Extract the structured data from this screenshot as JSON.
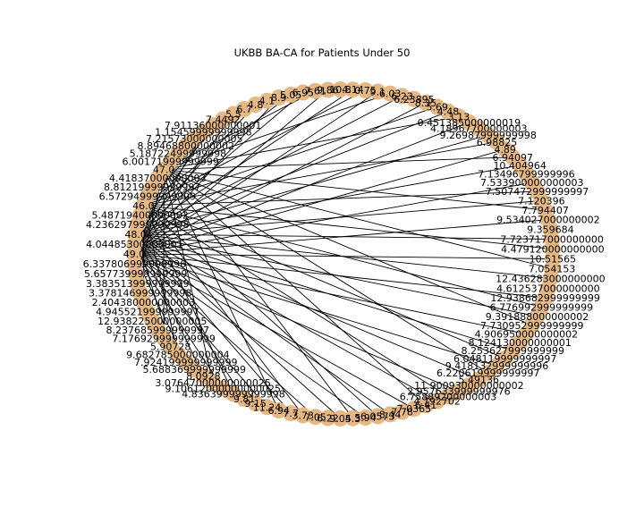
{
  "title": "UKBB BA-CA for Patients Under 50",
  "chart_data": {
    "type": "network",
    "layout": "circular",
    "node_color": "#e6b883",
    "edge_color": "#000000",
    "hubs": [
      "49.0",
      "48.0",
      "47.0",
      "46.0"
    ],
    "nodes": [
      "49.0",
      "4.04485300000001",
      "48.0",
      "4.236297999999998",
      "5.48719400000002",
      "46.0",
      "6.57294999999999",
      "8.81219999999997",
      "4.41837000000003",
      "47.0",
      "6.00171999999999",
      "5.18722499999998",
      "8.89468800000002",
      "7.21573000000005",
      "1.15459999999998",
      "7.91136000000001",
      "7.4492",
      "5.5",
      "6.7",
      "4.8",
      "4.1",
      "8.9",
      "5.05",
      "6.95",
      "7.61",
      "9.86",
      "10.8",
      "4.14",
      "0.75",
      "9.1",
      "6.03",
      "6.23",
      "6.23895",
      "8.35",
      "5.69",
      "4.48",
      "3.13",
      "0.451385000000019",
      "4.18967700000003",
      "9.26987999999998",
      "6.98825",
      "4.89",
      "6.94097",
      "10.404964",
      "7.13496799999996",
      "7.533900000000003",
      "7.507472999999997",
      "7.120396",
      "7.794407",
      "9.534027000000002",
      "9.359684",
      "7.723717000000000",
      "4.479120000000000",
      "10.51565",
      "7.054153",
      "12.436283000000000",
      "4.612537000000000",
      "12.938682999999999",
      "6.776992999999999",
      "9.391888000000002",
      "7.730952999999999",
      "4.906950000000002",
      "8.124130000000001",
      "8.253627999999999",
      "6.048119999999997",
      "9.418132999999996",
      "6.220619999999997",
      "5.49136",
      "11.900930000000002",
      "2.957633999999976",
      "6.75889200000003",
      "4.792702",
      "6.41",
      "7.0365",
      "7.78",
      "8.44",
      "6.0573",
      "5.94",
      "4.3",
      "9.05",
      "6.22",
      "7.05",
      "3.73",
      "7.7",
      "6.94",
      "11.24",
      "9.15",
      "9.81",
      "4.836399999999998",
      "9.10612000000000025",
      "3.07647000000000025",
      "8.0928",
      "5.688369999999999",
      "7.924199999999999",
      "9.682785000000004",
      "5.90728",
      "7.176929999999999",
      "8.237685999999997",
      "12.938225000000005",
      "4.945521999999997",
      "2.404380000000003",
      "3.378146999999998",
      "3.383513999999999",
      "5.657739999999999",
      "6.337806999999996"
    ],
    "edges": [
      [
        "49.0",
        0
      ],
      [
        "49.0",
        3
      ],
      [
        "49.0",
        6
      ],
      [
        "49.0",
        8
      ],
      [
        "49.0",
        11
      ],
      [
        "49.0",
        14
      ],
      [
        "49.0",
        17
      ],
      [
        "49.0",
        21
      ],
      [
        "49.0",
        25
      ],
      [
        "49.0",
        29
      ],
      [
        "49.0",
        33
      ],
      [
        "49.0",
        37
      ],
      [
        "49.0",
        41
      ],
      [
        "49.0",
        45
      ],
      [
        "49.0",
        49
      ],
      [
        "49.0",
        53
      ],
      [
        "49.0",
        57
      ],
      [
        "49.0",
        61
      ],
      [
        "49.0",
        65
      ],
      [
        "49.0",
        69
      ],
      [
        "49.0",
        73
      ],
      [
        "49.0",
        77
      ],
      [
        "49.0",
        81
      ],
      [
        "49.0",
        85
      ],
      [
        "49.0",
        89
      ],
      [
        "49.0",
        93
      ],
      [
        "49.0",
        97
      ],
      [
        "49.0",
        101
      ],
      [
        "48.0",
        1
      ],
      [
        "48.0",
        4
      ],
      [
        "48.0",
        9
      ],
      [
        "48.0",
        15
      ],
      [
        "48.0",
        19
      ],
      [
        "48.0",
        23
      ],
      [
        "48.0",
        27
      ],
      [
        "48.0",
        31
      ],
      [
        "48.0",
        35
      ],
      [
        "48.0",
        39
      ],
      [
        "48.0",
        43
      ],
      [
        "48.0",
        47
      ],
      [
        "48.0",
        51
      ],
      [
        "48.0",
        55
      ],
      [
        "48.0",
        59
      ],
      [
        "48.0",
        63
      ],
      [
        "48.0",
        67
      ],
      [
        "48.0",
        71
      ],
      [
        "48.0",
        75
      ],
      [
        "48.0",
        79
      ],
      [
        "48.0",
        83
      ],
      [
        "48.0",
        87
      ],
      [
        "48.0",
        91
      ],
      [
        "48.0",
        95
      ],
      [
        "48.0",
        99
      ],
      [
        "47.0",
        7
      ],
      [
        "47.0",
        12
      ],
      [
        "47.0",
        18
      ],
      [
        "47.0",
        24
      ],
      [
        "47.0",
        30
      ],
      [
        "47.0",
        36
      ],
      [
        "47.0",
        42
      ],
      [
        "47.0",
        48
      ],
      [
        "47.0",
        54
      ],
      [
        "47.0",
        60
      ],
      [
        "47.0",
        66
      ],
      [
        "47.0",
        72
      ],
      [
        "47.0",
        78
      ],
      [
        "47.0",
        84
      ],
      [
        "47.0",
        90
      ],
      [
        "47.0",
        96
      ],
      [
        "47.0",
        102
      ],
      [
        "46.0",
        10
      ],
      [
        "46.0",
        13
      ],
      [
        "46.0",
        16
      ],
      [
        "46.0",
        22
      ],
      [
        "46.0",
        28
      ],
      [
        "46.0",
        34
      ],
      [
        "46.0",
        40
      ],
      [
        "46.0",
        46
      ],
      [
        "46.0",
        52
      ],
      [
        "46.0",
        58
      ],
      [
        "46.0",
        64
      ],
      [
        "46.0",
        70
      ],
      [
        "46.0",
        76
      ],
      [
        "46.0",
        82
      ],
      [
        "46.0",
        88
      ],
      [
        "46.0",
        94
      ],
      [
        "46.0",
        100
      ]
    ]
  }
}
